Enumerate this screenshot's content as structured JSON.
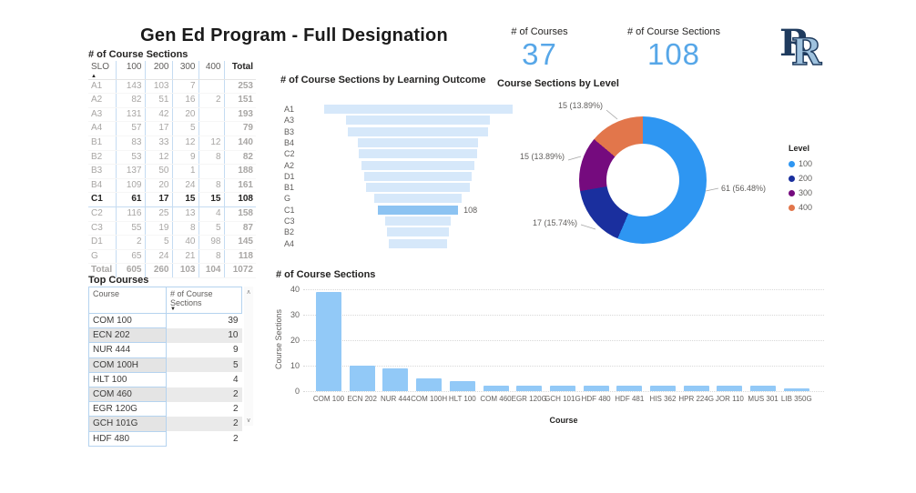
{
  "title": "Gen Ed Program - Full Designation",
  "slo_matrix": {
    "title": "# of Course Sections",
    "columns": [
      "SLO",
      "100",
      "200",
      "300",
      "400",
      "Total"
    ],
    "sort_icon": "▲",
    "selected_row": "C1",
    "rows": [
      [
        "A1",
        "143",
        "103",
        "7",
        "",
        "253"
      ],
      [
        "A2",
        "82",
        "51",
        "16",
        "2",
        "151"
      ],
      [
        "A3",
        "131",
        "42",
        "20",
        "",
        "193"
      ],
      [
        "A4",
        "57",
        "17",
        "5",
        "",
        "79"
      ],
      [
        "B1",
        "83",
        "33",
        "12",
        "12",
        "140"
      ],
      [
        "B2",
        "53",
        "12",
        "9",
        "8",
        "82"
      ],
      [
        "B3",
        "137",
        "50",
        "1",
        "",
        "188"
      ],
      [
        "B4",
        "109",
        "20",
        "24",
        "8",
        "161"
      ],
      [
        "C1",
        "61",
        "17",
        "15",
        "15",
        "108"
      ],
      [
        "C2",
        "116",
        "25",
        "13",
        "4",
        "158"
      ],
      [
        "C3",
        "55",
        "19",
        "8",
        "5",
        "87"
      ],
      [
        "D1",
        "2",
        "5",
        "40",
        "98",
        "145"
      ],
      [
        "G",
        "65",
        "24",
        "21",
        "8",
        "118"
      ]
    ],
    "total_row": [
      "Total",
      "605",
      "260",
      "103",
      "104",
      "1072"
    ]
  },
  "top_courses": {
    "title": "Top Courses",
    "columns": [
      "Course",
      "# of Course Sections"
    ],
    "sort_icon": "▼",
    "rows": [
      [
        "COM 100",
        "39"
      ],
      [
        "ECN 202",
        "10"
      ],
      [
        "NUR 444",
        "9"
      ],
      [
        "COM 100H",
        "5"
      ],
      [
        "HLT 100",
        "4"
      ],
      [
        "COM 460",
        "2"
      ],
      [
        "EGR 120G",
        "2"
      ],
      [
        "GCH 101G",
        "2"
      ],
      [
        "HDF 480",
        "2"
      ]
    ],
    "scrollbar": {
      "up": "∧",
      "down": "∨"
    }
  },
  "cards": [
    {
      "label": "# of Courses",
      "value": "37"
    },
    {
      "label": "# of Course Sections",
      "value": "108"
    }
  ],
  "logo": {
    "back_letter": "R",
    "front_letter": "R"
  },
  "colors": {
    "accent_blue": "#57A7E8",
    "bar_blue": "#92C9F7",
    "funnel_dim": "#D6E8FA",
    "funnel_highlight": "#8CC3F2",
    "table_border_blue": "#B5D3EF"
  },
  "chart_data": [
    {
      "type": "bar",
      "subtype": "funnel-horizontal",
      "title": "# of Course Sections by Learning Outcome",
      "categories": [
        "A1",
        "A3",
        "B3",
        "B4",
        "C2",
        "A2",
        "D1",
        "B1",
        "G",
        "C1",
        "C3",
        "B2",
        "A4"
      ],
      "values": [
        253,
        193,
        188,
        161,
        158,
        151,
        145,
        140,
        118,
        108,
        87,
        82,
        79
      ],
      "highlighted_category": "C1",
      "highlight_label": "108",
      "xlim": [
        0,
        253
      ]
    },
    {
      "type": "pie",
      "subtype": "donut",
      "title": "Course Sections by Level",
      "legend_title": "Level",
      "legend_position": "right",
      "segments": [
        {
          "label": "100",
          "value": 61,
          "pct": 56.48,
          "data_label": "61 (56.48%)",
          "color": "#2E96F2"
        },
        {
          "label": "200",
          "value": 17,
          "pct": 15.74,
          "data_label": "17 (15.74%)",
          "color": "#1A2F9E"
        },
        {
          "label": "300",
          "value": 15,
          "pct": 13.89,
          "data_label": "15 (13.89%)",
          "color": "#750B7E"
        },
        {
          "label": "400",
          "value": 15,
          "pct": 13.89,
          "data_label": "15 (13.89%)",
          "color": "#E2764B"
        }
      ]
    },
    {
      "type": "bar",
      "title": "# of Course Sections",
      "xlabel": "Course",
      "ylabel": "Course Sections",
      "ylim": [
        0,
        40
      ],
      "yticks": [
        0,
        10,
        20,
        30,
        40
      ],
      "grid": "dotted",
      "categories": [
        "COM 100",
        "ECN 202",
        "NUR 444",
        "COM 100H",
        "HLT 100",
        "COM 460",
        "EGR 120G",
        "GCH 101G",
        "HDF 480",
        "HDF 481",
        "HIS 362",
        "HPR 224G",
        "JOR 110",
        "MUS 301",
        "LIB 350G"
      ],
      "values": [
        39,
        10,
        9,
        5,
        4,
        2,
        2,
        2,
        2,
        2,
        2,
        2,
        2,
        2,
        1
      ]
    }
  ]
}
